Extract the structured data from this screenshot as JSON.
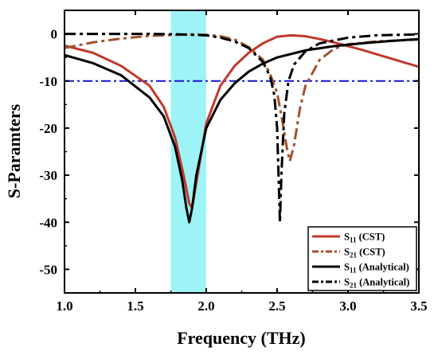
{
  "chart_data": {
    "type": "line",
    "title": "",
    "xlabel": "Frequency (THz)",
    "ylabel": "S-Paramters",
    "xlim": [
      1.0,
      3.5
    ],
    "ylim": [
      -55,
      5
    ],
    "xticks": [
      "1.0",
      "1.5",
      "2.0",
      "2.5",
      "3.0",
      "3.5"
    ],
    "yticks": [
      "0",
      "-10",
      "-20",
      "-30",
      "-40",
      "-50"
    ],
    "xtick_values": [
      1.0,
      1.5,
      2.0,
      2.5,
      3.0,
      3.5
    ],
    "ytick_values": [
      0,
      -10,
      -20,
      -30,
      -40,
      -50
    ],
    "grid": false,
    "legend_position": "bottom-right",
    "highlight_band": {
      "x": [
        1.75,
        2.0
      ],
      "color": "#9ef3f7"
    },
    "reference_line": {
      "y": -10,
      "color": "#1515d6",
      "style": "dash-dot"
    },
    "series": [
      {
        "legend_main": "S",
        "legend_sub": "11",
        "legend_suffix": " (CST)",
        "color": "#c0392b",
        "style": "solid",
        "x": [
          1.0,
          1.2,
          1.4,
          1.6,
          1.7,
          1.78,
          1.84,
          1.88,
          1.9,
          1.95,
          2.0,
          2.1,
          2.2,
          2.3,
          2.4,
          2.5,
          2.6,
          2.7,
          2.8,
          2.9,
          3.0,
          3.1,
          3.2,
          3.3,
          3.4,
          3.5
        ],
        "y": [
          -2.5,
          -4,
          -6.8,
          -11,
          -15.5,
          -22,
          -30,
          -36,
          -37,
          -28,
          -19,
          -11,
          -6.8,
          -4,
          -2,
          -0.6,
          -0.3,
          -0.5,
          -1.1,
          -1.8,
          -2.6,
          -3.4,
          -4.3,
          -5.2,
          -6.1,
          -7.0
        ]
      },
      {
        "legend_main": "S",
        "legend_sub": "21",
        "legend_suffix": " (CST)",
        "color": "#a0522d",
        "style": "dash-dot",
        "x": [
          1.0,
          1.2,
          1.4,
          1.6,
          1.8,
          1.9,
          2.0,
          2.1,
          2.2,
          2.3,
          2.4,
          2.45,
          2.5,
          2.54,
          2.57,
          2.59,
          2.62,
          2.66,
          2.7,
          2.8,
          2.9,
          3.0,
          3.2,
          3.5
        ],
        "y": [
          -3,
          -1.8,
          -1,
          -0.4,
          -0.2,
          -0.1,
          -0.2,
          -0.5,
          -1.2,
          -2.8,
          -5.5,
          -8.5,
          -12.5,
          -19,
          -24.5,
          -27,
          -23.5,
          -16,
          -11,
          -5.5,
          -3.2,
          -2.2,
          -1.6,
          -1.2
        ]
      },
      {
        "legend_main": "S",
        "legend_sub": "11",
        "legend_suffix": " (Analytical)",
        "color": "#000000",
        "style": "solid",
        "x": [
          1.0,
          1.2,
          1.4,
          1.6,
          1.7,
          1.78,
          1.83,
          1.86,
          1.88,
          1.9,
          1.93,
          2.0,
          2.1,
          2.2,
          2.3,
          2.4,
          2.5,
          2.7,
          2.9,
          3.1,
          3.3,
          3.5
        ],
        "y": [
          -4.5,
          -6.2,
          -8.8,
          -13.5,
          -17.5,
          -24,
          -31,
          -37,
          -40,
          -37,
          -30,
          -20,
          -14,
          -10.5,
          -8,
          -6.3,
          -5,
          -3.5,
          -2.6,
          -2,
          -1.5,
          -1.1
        ]
      },
      {
        "legend_main": "S",
        "legend_sub": "21",
        "legend_suffix": " (Analytical)",
        "color": "#000000",
        "style": "dash-dot",
        "x": [
          1.0,
          1.3,
          1.6,
          1.8,
          1.9,
          2.0,
          2.1,
          2.2,
          2.3,
          2.4,
          2.45,
          2.48,
          2.5,
          2.51,
          2.52,
          2.53,
          2.55,
          2.58,
          2.62,
          2.7,
          2.8,
          3.0,
          3.2,
          3.5
        ],
        "y": [
          0,
          0,
          0,
          -0.1,
          -0.2,
          -0.3,
          -0.8,
          -1.6,
          -3,
          -6,
          -9,
          -13,
          -20,
          -30,
          -40,
          -30,
          -17,
          -10,
          -6.5,
          -3.7,
          -2,
          -0.8,
          -0.3,
          -0.1
        ]
      }
    ]
  }
}
